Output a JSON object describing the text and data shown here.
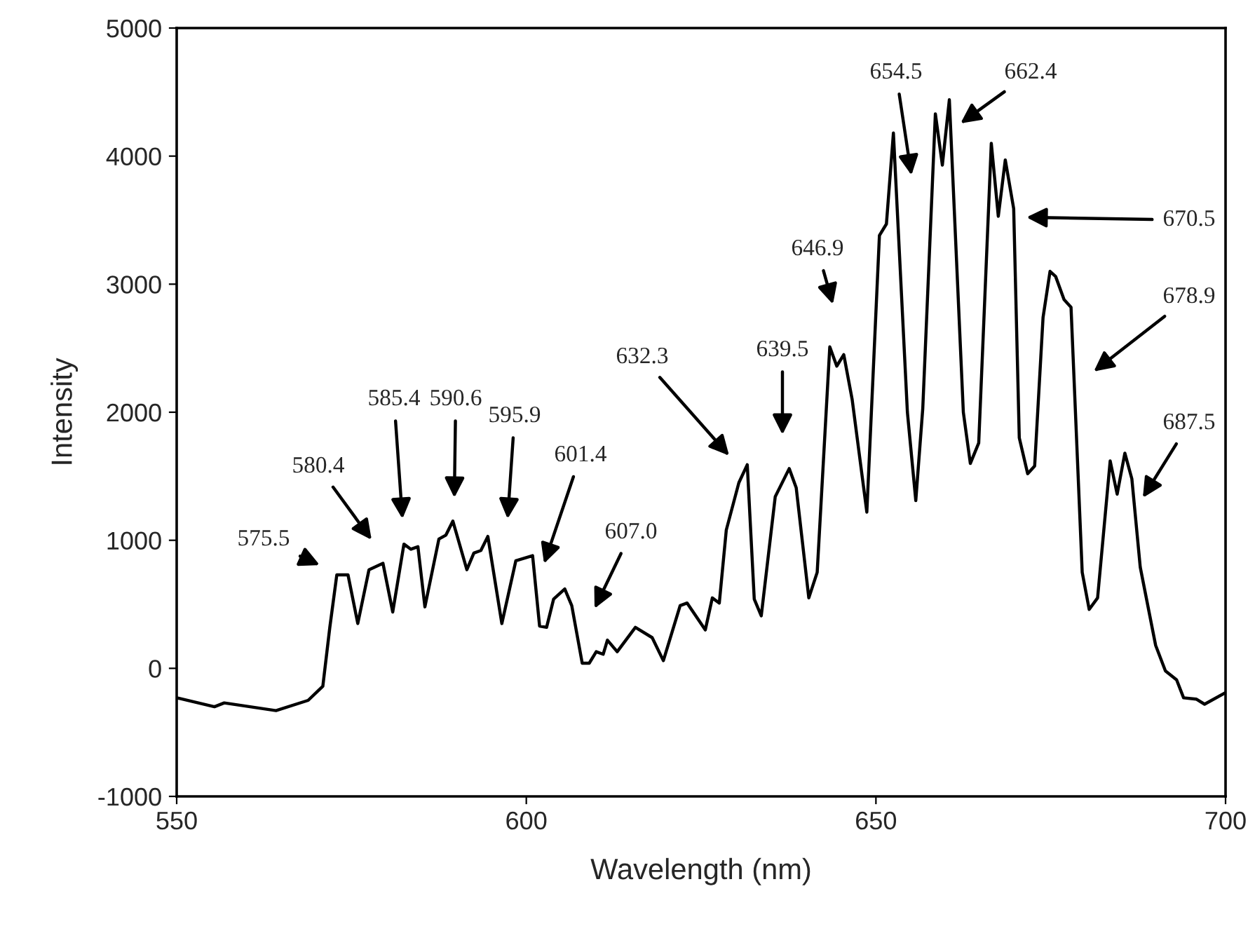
{
  "chart_data": {
    "type": "line",
    "xlabel": "Wavelength (nm)",
    "ylabel": "Intensity",
    "x": [
      550,
      555.4,
      556.8,
      564.2,
      568.8,
      570.9,
      571.9,
      572.9,
      574.5,
      575.9,
      577.5,
      579.5,
      580.9,
      582.5,
      583.5,
      584.5,
      585.5,
      587.5,
      588.5,
      589.5,
      591.5,
      592.5,
      593.5,
      594.5,
      596.5,
      598.5,
      600.9,
      601.9,
      602.9,
      603.9,
      605.5,
      606.5,
      608.0,
      609.0,
      610.0,
      611.0,
      611.6,
      613.0,
      615.6,
      618.0,
      619.6,
      622.0,
      623.0,
      625.6,
      626.6,
      627.6,
      628.6,
      630.4,
      631.6,
      632.6,
      633.6,
      635.6,
      637.6,
      638.6,
      640.4,
      641.6,
      643.4,
      644.4,
      645.4,
      646.6,
      648.7,
      650.5,
      651.5,
      652.5,
      654.5,
      655.7,
      656.7,
      658.5,
      659.5,
      660.5,
      662.5,
      663.5,
      664.7,
      666.5,
      667.5,
      668.5,
      669.7,
      670.5,
      671.7,
      672.7,
      673.9,
      674.9,
      675.7,
      676.9,
      677.9,
      679.5,
      680.5,
      681.7,
      683.5,
      684.5,
      685.6,
      686.6,
      687.8,
      690.0,
      691.4,
      693.0,
      694.0,
      695.8,
      697.0,
      700
    ],
    "series": [
      {
        "color": "#000000",
        "values": [
          -230,
          -300,
          -270,
          -330,
          -250,
          -140,
          320,
          730,
          730,
          350,
          770,
          820,
          440,
          970,
          930,
          950,
          480,
          1010,
          1040,
          1150,
          770,
          900,
          920,
          1030,
          350,
          840,
          880,
          330,
          320,
          540,
          620,
          490,
          40,
          40,
          130,
          110,
          220,
          130,
          320,
          240,
          60,
          490,
          510,
          300,
          550,
          510,
          1080,
          1450,
          1590,
          540,
          410,
          1340,
          1560,
          1410,
          550,
          750,
          2510,
          2360,
          2450,
          2100,
          1220,
          3380,
          3470,
          4180,
          2000,
          1310,
          2030,
          4330,
          3930,
          4440,
          2000,
          1600,
          1760,
          4100,
          3530,
          3970,
          3590,
          1800,
          1520,
          1580,
          2740,
          3100,
          3060,
          2880,
          2820,
          750,
          460,
          550,
          1620,
          1360,
          1680,
          1480,
          790,
          180,
          -20,
          -90,
          -230,
          -240,
          -280,
          -190
        ]
      }
    ],
    "xlim": [
      550,
      700
    ],
    "ylim": [
      -1000,
      5000
    ],
    "xticks": [
      550,
      600,
      650,
      700
    ],
    "yticks": [
      -1000,
      0,
      1000,
      2000,
      3000,
      4000,
      5000
    ],
    "grid": false,
    "marker": "none",
    "line_style": "solid",
    "annotations": [
      "575.5",
      "580.4",
      "585.4",
      "590.6",
      "595.9",
      "601.4",
      "607.0",
      "632.3",
      "639.5",
      "646.9",
      "654.5",
      "662.4",
      "670.5",
      "678.9",
      "687.5"
    ]
  }
}
